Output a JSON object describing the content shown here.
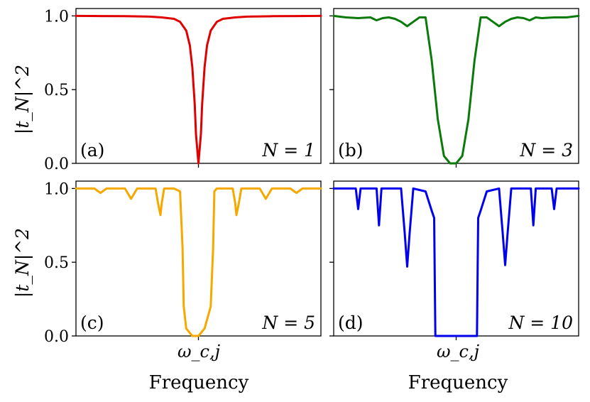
{
  "chart_data": [
    {
      "id": "a",
      "type": "line",
      "panel_label": "(a)",
      "n_label": "N = 1",
      "N": 1,
      "color": "#e00000",
      "x": [
        -1,
        -0.8,
        -0.6,
        -0.4,
        -0.3,
        -0.2,
        -0.15,
        -0.1,
        -0.07,
        -0.05,
        -0.03,
        -0.02,
        0,
        0.02,
        0.03,
        0.05,
        0.07,
        0.1,
        0.15,
        0.2,
        0.3,
        0.4,
        0.6,
        0.8,
        1
      ],
      "y": [
        1.0,
        0.999,
        0.998,
        0.995,
        0.99,
        0.98,
        0.96,
        0.9,
        0.8,
        0.65,
        0.4,
        0.2,
        0.0,
        0.2,
        0.4,
        0.65,
        0.8,
        0.9,
        0.96,
        0.98,
        0.99,
        0.995,
        0.998,
        0.999,
        1.0
      ],
      "ylabel": "|t_N|^2",
      "ylim": [
        0,
        1.05
      ],
      "yticks": [
        "0.0",
        "0.5",
        "1.0"
      ]
    },
    {
      "id": "b",
      "type": "line",
      "panel_label": "(b)",
      "n_label": "N = 3",
      "N": 3,
      "color": "#0a7a0a",
      "x": [
        -1,
        -0.9,
        -0.8,
        -0.7,
        -0.65,
        -0.6,
        -0.55,
        -0.5,
        -0.45,
        -0.4,
        -0.35,
        -0.3,
        -0.25,
        -0.2,
        -0.15,
        -0.1,
        -0.05,
        0,
        0.05,
        0.1,
        0.15,
        0.2,
        0.25,
        0.3,
        0.35,
        0.4,
        0.45,
        0.5,
        0.55,
        0.6,
        0.65,
        0.7,
        0.8,
        0.9,
        1
      ],
      "y": [
        1.0,
        0.99,
        0.985,
        0.99,
        0.97,
        0.985,
        0.99,
        0.98,
        0.96,
        0.93,
        0.96,
        0.99,
        0.99,
        0.7,
        0.3,
        0.05,
        0.0,
        0.0,
        0.05,
        0.3,
        0.7,
        0.99,
        0.99,
        0.96,
        0.93,
        0.96,
        0.98,
        0.99,
        0.985,
        0.97,
        0.99,
        0.985,
        0.99,
        0.99,
        1.0
      ]
    },
    {
      "id": "c",
      "type": "line",
      "panel_label": "(c)",
      "n_label": "N = 5",
      "N": 5,
      "color": "#f5a800",
      "x_tick": "ω_c,j",
      "xlabel": "Frequency",
      "x": [
        -1,
        -0.85,
        -0.8,
        -0.75,
        -0.6,
        -0.55,
        -0.5,
        -0.35,
        -0.33,
        -0.31,
        -0.3,
        -0.28,
        -0.2,
        -0.15,
        -0.13,
        -0.12,
        -0.1,
        -0.05,
        0,
        0.05,
        0.1,
        0.12,
        0.13,
        0.15,
        0.2,
        0.28,
        0.3,
        0.31,
        0.33,
        0.35,
        0.5,
        0.55,
        0.6,
        0.75,
        0.8,
        0.85,
        1
      ],
      "y": [
        1.0,
        1.0,
        0.97,
        1.0,
        1.0,
        0.93,
        1.0,
        1.0,
        0.9,
        0.82,
        0.9,
        1.0,
        1.0,
        0.98,
        0.6,
        0.2,
        0.05,
        0.0,
        0.0,
        0.05,
        0.2,
        0.6,
        0.98,
        1.0,
        1.0,
        1.0,
        0.9,
        0.82,
        0.9,
        1.0,
        1.0,
        0.93,
        1.0,
        1.0,
        0.97,
        1.0,
        1.0
      ],
      "ylabel": "|t_N|^2"
    },
    {
      "id": "d",
      "type": "line",
      "panel_label": "(d)",
      "n_label": "N = 10",
      "N": 10,
      "color": "#0000ee",
      "x_tick": "ω_c,j",
      "xlabel": "Frequency",
      "x": [
        -1,
        -0.82,
        -0.8,
        -0.78,
        -0.65,
        -0.63,
        -0.61,
        -0.45,
        -0.42,
        -0.4,
        -0.38,
        -0.35,
        -0.25,
        -0.2,
        -0.18,
        -0.17,
        -0.16,
        -0.1,
        0,
        0.1,
        0.16,
        0.17,
        0.18,
        0.2,
        0.25,
        0.35,
        0.38,
        0.4,
        0.42,
        0.45,
        0.61,
        0.63,
        0.65,
        0.78,
        0.8,
        0.82,
        1
      ],
      "y": [
        1.0,
        1.0,
        0.86,
        1.0,
        1.0,
        0.75,
        1.0,
        1.0,
        0.7,
        0.47,
        0.7,
        1.0,
        0.98,
        0.85,
        0.8,
        0.0,
        0.0,
        0.0,
        0.0,
        0.0,
        0.0,
        0.0,
        0.8,
        0.85,
        0.98,
        1.0,
        0.7,
        0.48,
        0.7,
        1.0,
        1.0,
        0.75,
        1.0,
        1.0,
        0.86,
        1.0,
        1.0
      ]
    }
  ]
}
